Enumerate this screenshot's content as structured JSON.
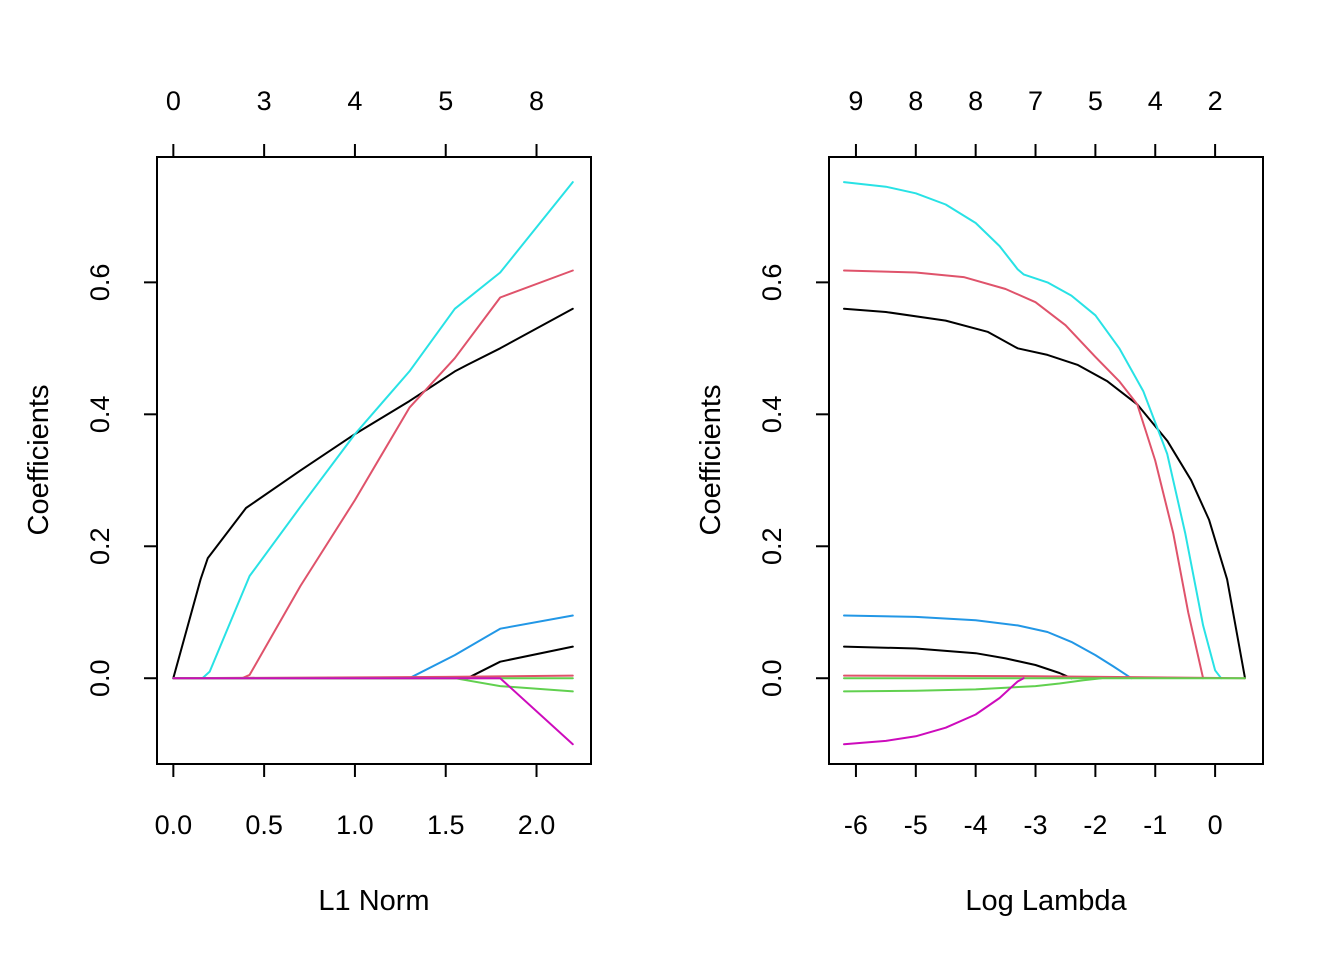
{
  "chart_data": [
    {
      "type": "line",
      "xlabel": "L1 Norm",
      "ylabel": "Coefficients",
      "xlim": [
        -0.09,
        2.3
      ],
      "ylim": [
        -0.13,
        0.79
      ],
      "xticks": [
        0.0,
        0.5,
        1.0,
        1.5,
        2.0
      ],
      "xtick_labels": [
        "0.0",
        "0.5",
        "1.0",
        "1.5",
        "2.0"
      ],
      "yticks": [
        0.0,
        0.2,
        0.4,
        0.6
      ],
      "ytick_labels": [
        "0.0",
        "0.2",
        "0.4",
        "0.6"
      ],
      "top_axis": {
        "ticks": [
          0.0,
          0.5,
          1.0,
          1.5,
          2.0
        ],
        "labels": [
          "0",
          "3",
          "4",
          "5",
          "8"
        ]
      },
      "grid": false,
      "legend": "none",
      "series": [
        {
          "color": "#000000",
          "x": [
            0,
            0.15,
            0.19,
            0.4,
            0.7,
            1.0,
            1.3,
            1.55,
            1.62,
            1.8,
            2.0,
            2.2
          ],
          "y": [
            0,
            0.15,
            0.182,
            0.258,
            0.315,
            0.37,
            0.42,
            0.465,
            0.475,
            0.5,
            0.53,
            0.56
          ]
        },
        {
          "color": "#DF536B",
          "x": [
            0,
            0.38,
            0.42,
            0.7,
            1.0,
            1.3,
            1.55,
            1.8,
            2.2
          ],
          "y": [
            0,
            0,
            0.005,
            0.14,
            0.27,
            0.41,
            0.485,
            0.577,
            0.618
          ]
        },
        {
          "color": "#28E2E5",
          "x": [
            0,
            0.16,
            0.2,
            0.42,
            0.7,
            1.0,
            1.3,
            1.55,
            1.8,
            2.2
          ],
          "y": [
            0,
            0,
            0.01,
            0.155,
            0.26,
            0.37,
            0.465,
            0.56,
            0.615,
            0.752
          ]
        },
        {
          "color": "#2297E6",
          "x": [
            0,
            1.3,
            1.55,
            1.8,
            2.2
          ],
          "y": [
            0,
            0,
            0.035,
            0.075,
            0.095
          ]
        },
        {
          "color": "#000000",
          "x": [
            0,
            1.62,
            1.8,
            2.2
          ],
          "y": [
            0,
            0,
            0.025,
            0.048
          ]
        },
        {
          "color": "#DF536B",
          "x": [
            0,
            1.5,
            2.2
          ],
          "y": [
            0,
            0.002,
            0.004
          ]
        },
        {
          "color": "#61D04F",
          "x": [
            0,
            1.55,
            1.8,
            2.2
          ],
          "y": [
            0,
            0,
            -0.012,
            -0.02
          ]
        },
        {
          "color": "#61D04F",
          "x": [
            0,
            2.2
          ],
          "y": [
            0,
            0
          ]
        },
        {
          "color": "#CD0BBC",
          "x": [
            0,
            1.8,
            2.2
          ],
          "y": [
            0,
            0,
            -0.1
          ]
        }
      ]
    },
    {
      "type": "line",
      "xlabel": "Log Lambda",
      "ylabel": "Coefficients",
      "xlim": [
        -6.45,
        0.8
      ],
      "ylim": [
        -0.13,
        0.79
      ],
      "xticks": [
        -6,
        -5,
        -4,
        -3,
        -2,
        -1,
        0
      ],
      "xtick_labels": [
        "-6",
        "-5",
        "-4",
        "-3",
        "-2",
        "-1",
        "0"
      ],
      "yticks": [
        0.0,
        0.2,
        0.4,
        0.6
      ],
      "ytick_labels": [
        "0.0",
        "0.2",
        "0.4",
        "0.6"
      ],
      "top_axis": {
        "ticks": [
          -6,
          -5,
          -4,
          -3,
          -2,
          -1,
          0
        ],
        "labels": [
          "9",
          "8",
          "8",
          "7",
          "5",
          "4",
          "2"
        ]
      },
      "grid": false,
      "legend": "none",
      "series": [
        {
          "color": "#000000",
          "x": [
            -6.2,
            -5.5,
            -4.5,
            -3.8,
            -3.3,
            -2.8,
            -2.3,
            -1.8,
            -1.3,
            -0.8,
            -0.4,
            -0.1,
            0.2,
            0.5
          ],
          "y": [
            0.56,
            0.555,
            0.542,
            0.525,
            0.5,
            0.49,
            0.475,
            0.45,
            0.415,
            0.36,
            0.3,
            0.24,
            0.15,
            0.0
          ]
        },
        {
          "color": "#DF536B",
          "x": [
            -6.2,
            -5.0,
            -4.2,
            -3.5,
            -3.0,
            -2.5,
            -2.0,
            -1.6,
            -1.3,
            -1.0,
            -0.7,
            -0.45,
            -0.2
          ],
          "y": [
            0.618,
            0.615,
            0.608,
            0.59,
            0.57,
            0.535,
            0.487,
            0.45,
            0.415,
            0.33,
            0.22,
            0.1,
            0.0
          ]
        },
        {
          "color": "#28E2E5",
          "x": [
            -6.2,
            -5.5,
            -5.0,
            -4.5,
            -4.0,
            -3.6,
            -3.3,
            -3.2,
            -2.8,
            -2.4,
            -2.0,
            -1.6,
            -1.2,
            -0.8,
            -0.5,
            -0.2,
            0.0,
            0.1
          ],
          "y": [
            0.752,
            0.745,
            0.735,
            0.718,
            0.69,
            0.655,
            0.62,
            0.612,
            0.6,
            0.58,
            0.55,
            0.5,
            0.435,
            0.34,
            0.22,
            0.08,
            0.012,
            0.0
          ]
        },
        {
          "color": "#2297E6",
          "x": [
            -6.2,
            -5.0,
            -4.0,
            -3.3,
            -2.8,
            -2.4,
            -2.0,
            -1.7,
            -1.4
          ],
          "y": [
            0.095,
            0.093,
            0.088,
            0.08,
            0.07,
            0.055,
            0.035,
            0.018,
            0.0
          ]
        },
        {
          "color": "#000000",
          "x": [
            -6.2,
            -5.0,
            -4.0,
            -3.5,
            -3.0,
            -2.6,
            -2.4
          ],
          "y": [
            0.048,
            0.045,
            0.038,
            0.03,
            0.02,
            0.008,
            0.0
          ]
        },
        {
          "color": "#DF536B",
          "x": [
            -6.2,
            -3.0,
            0.5
          ],
          "y": [
            0.004,
            0.003,
            0.0
          ]
        },
        {
          "color": "#61D04F",
          "x": [
            -6.2,
            -5.0,
            -4.0,
            -3.0,
            -2.6,
            -2.2,
            -1.9
          ],
          "y": [
            -0.02,
            -0.019,
            -0.017,
            -0.012,
            -0.008,
            -0.003,
            0.0
          ]
        },
        {
          "color": "#61D04F",
          "x": [
            -6.2,
            0.5
          ],
          "y": [
            0,
            0
          ]
        },
        {
          "color": "#CD0BBC",
          "x": [
            -6.2,
            -5.5,
            -5.0,
            -4.5,
            -4.0,
            -3.6,
            -3.3,
            -3.2
          ],
          "y": [
            -0.1,
            -0.095,
            -0.088,
            -0.075,
            -0.055,
            -0.03,
            -0.005,
            0.0
          ]
        }
      ]
    }
  ]
}
